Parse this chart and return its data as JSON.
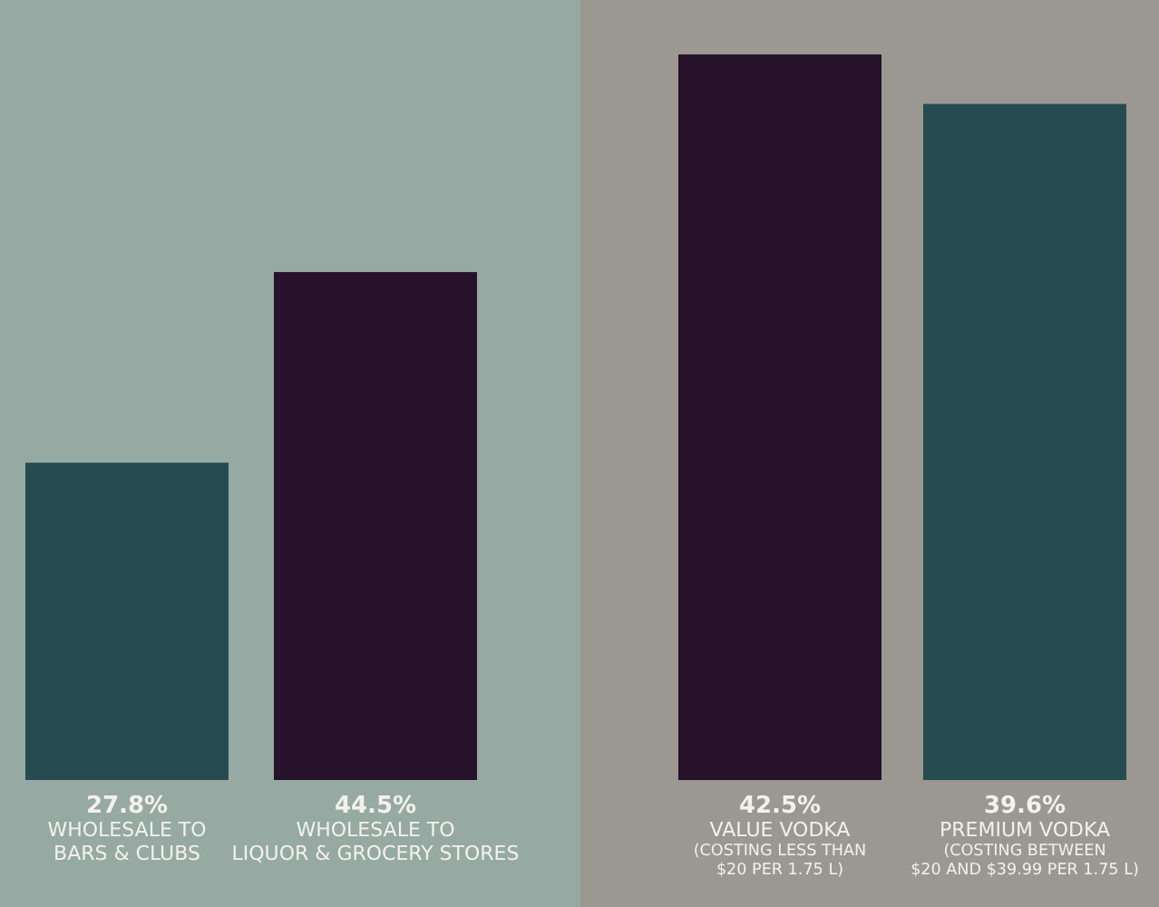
{
  "chart_data": [
    {
      "type": "bar",
      "categories": [
        "WHOLESALE TO\nBARS & CLUBS",
        "WHOLESALE TO\nLIQUOR & GROCERY STORES"
      ],
      "values": [
        27.8,
        44.5
      ],
      "colors": [
        "#264c52",
        "#26122b"
      ],
      "value_labels": [
        "27.8%",
        "44.5%"
      ]
    },
    {
      "type": "bar",
      "categories": [
        "VALUE VODKA\n(COSTING LESS THAN\n$20 PER 1.75 L)",
        "PREMIUM VODKA\n(COSTING BETWEEN\n$20 AND $39.99 PER 1.75 L)"
      ],
      "values": [
        42.5,
        39.6
      ],
      "colors": [
        "#26122b",
        "#264c52"
      ],
      "value_labels": [
        "42.5%",
        "39.6%"
      ]
    }
  ]
}
